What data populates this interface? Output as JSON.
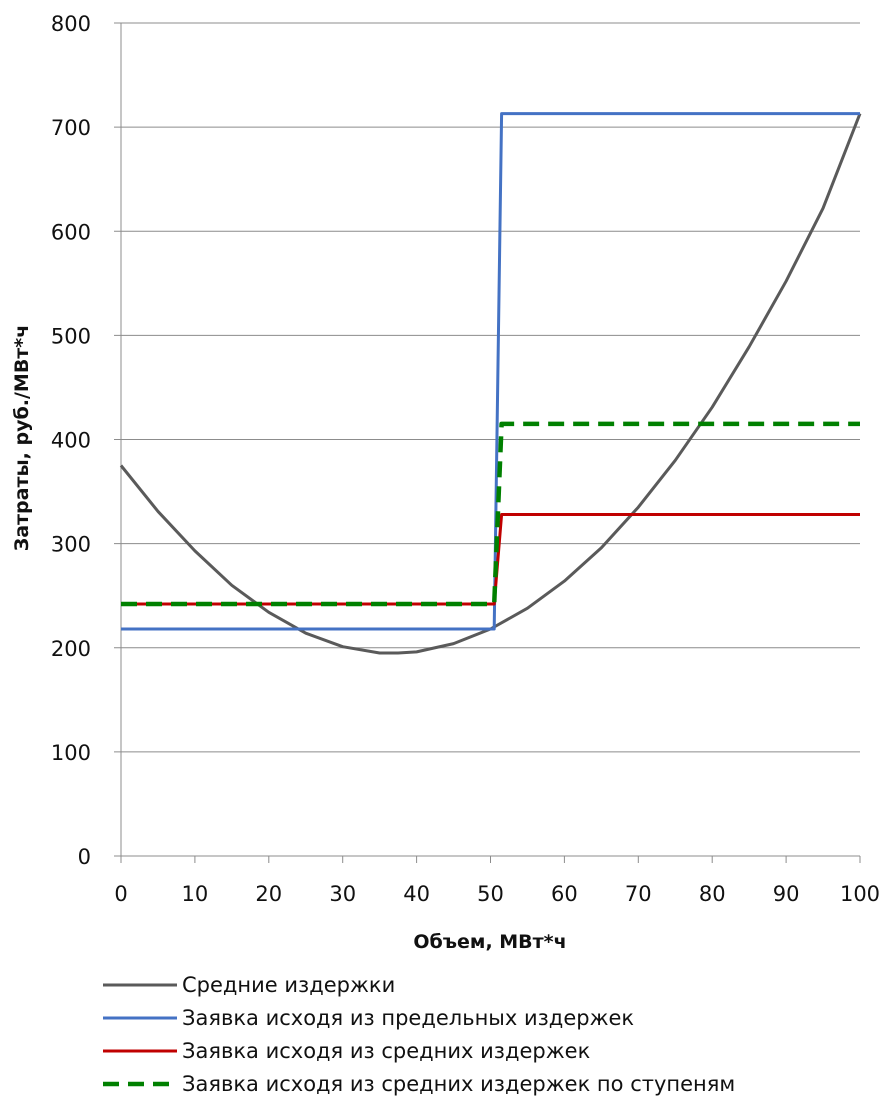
{
  "chart_data": {
    "type": "line",
    "xlabel": "Объем, МВт*ч",
    "ylabel": "Затраты, руб./МВт*ч",
    "xlim": [
      0,
      100
    ],
    "ylim": [
      0,
      800
    ],
    "x_ticks": [
      "0",
      "10",
      "20",
      "30",
      "40",
      "50",
      "60",
      "70",
      "80",
      "90",
      "100"
    ],
    "y_ticks": [
      "0",
      "100",
      "200",
      "300",
      "400",
      "500",
      "600",
      "700",
      "800"
    ],
    "grid": "horizontal",
    "legend_position": "bottom",
    "series": [
      {
        "name": "Средние издержки",
        "color": "#5a5a5a",
        "style": "solid",
        "x": [
          0,
          5,
          10,
          15,
          20,
          25,
          30,
          35,
          37.5,
          40,
          45,
          50,
          55,
          60,
          65,
          70,
          75,
          80,
          85,
          90,
          95,
          100
        ],
        "y": [
          375,
          331,
          293,
          260,
          234,
          214,
          201,
          195,
          195,
          196,
          204,
          218,
          238,
          264,
          296,
          335,
          380,
          431,
          489,
          552,
          622,
          713
        ]
      },
      {
        "name": "Заявка исходя из предельных издержек",
        "color": "#4472c4",
        "style": "solid",
        "x": [
          0,
          50.5,
          51.5,
          100
        ],
        "y": [
          218,
          218,
          713,
          713
        ]
      },
      {
        "name": "Заявка исходя из средних издержек",
        "color": "#c00000",
        "style": "solid",
        "x": [
          0,
          50.5,
          51.5,
          100
        ],
        "y": [
          242,
          242,
          328,
          328
        ]
      },
      {
        "name": "Заявка исходя из средних издержек по ступеням",
        "color": "#008000",
        "style": "dashed",
        "x": [
          0,
          50.5,
          51.5,
          100
        ],
        "y": [
          242,
          242,
          415,
          415
        ]
      }
    ]
  }
}
